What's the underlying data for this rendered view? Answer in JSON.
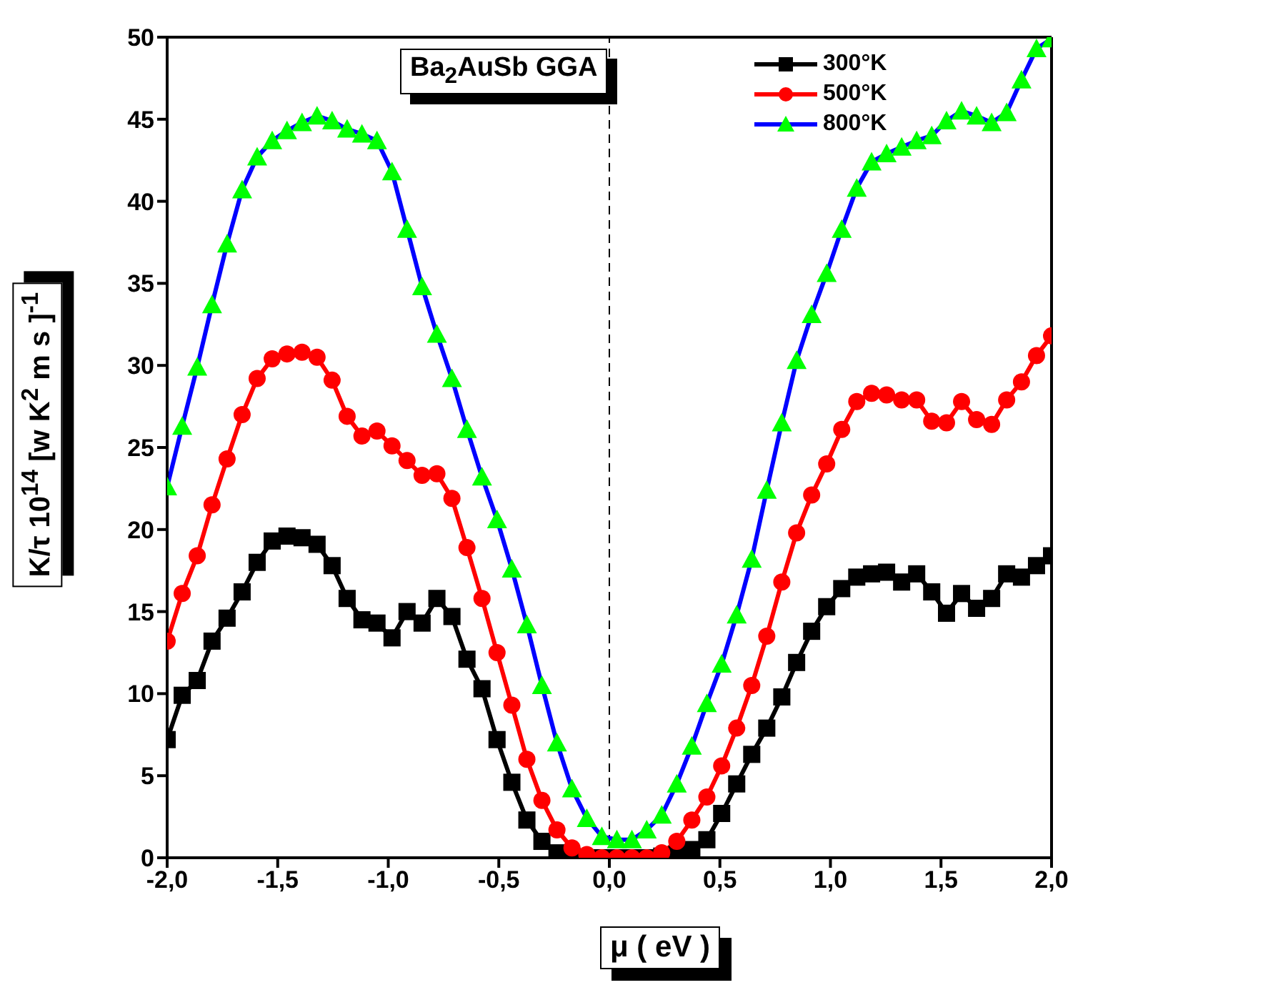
{
  "chart_data": {
    "type": "line",
    "title": "Ba$_{2}$AuSb GGA",
    "xlabel": "μ ( eV )",
    "ylabel": "K/τ 10$^{14}$ [w K$^{2}$ m s ]$^{-1}$",
    "x": [
      -2,
      -1.932,
      -1.864,
      -1.797,
      -1.729,
      -1.661,
      -1.593,
      -1.525,
      -1.458,
      -1.39,
      -1.322,
      -1.254,
      -1.186,
      -1.119,
      -1.051,
      -0.983,
      -0.915,
      -0.847,
      -0.78,
      -0.712,
      -0.644,
      -0.576,
      -0.508,
      -0.441,
      -0.373,
      -0.305,
      -0.237,
      -0.169,
      -0.102,
      -0.034,
      0.034,
      0.102,
      0.169,
      0.237,
      0.305,
      0.373,
      0.441,
      0.508,
      0.576,
      0.644,
      0.712,
      0.78,
      0.847,
      0.915,
      0.983,
      1.051,
      1.119,
      1.186,
      1.254,
      1.322,
      1.39,
      1.458,
      1.525,
      1.593,
      1.661,
      1.729,
      1.797,
      1.864,
      1.932,
      2
    ],
    "series": [
      {
        "name": "300°K",
        "color": "#000000",
        "marker": "square",
        "values": [
          7.2,
          9.9,
          10.8,
          13.2,
          14.6,
          16.2,
          18.0,
          19.3,
          19.6,
          19.5,
          19.1,
          17.8,
          15.8,
          14.5,
          14.3,
          13.4,
          15.0,
          14.3,
          15.8,
          14.7,
          12.1,
          10.3,
          7.2,
          4.6,
          2.3,
          1.0,
          0.3,
          0.1,
          0,
          0,
          0,
          0,
          0,
          0.1,
          0.2,
          0.5,
          1.1,
          2.7,
          4.5,
          6.3,
          7.9,
          9.8,
          11.9,
          13.8,
          15.3,
          16.4,
          17.1,
          17.3,
          17.4,
          16.8,
          17.3,
          16.2,
          14.9,
          16.1,
          15.2,
          15.8,
          17.3,
          17.1,
          17.8,
          18.4
        ]
      },
      {
        "name": "500°K",
        "color": "#ff0000",
        "marker": "circle",
        "values": [
          13.2,
          16.1,
          18.4,
          21.5,
          24.3,
          27.0,
          29.2,
          30.4,
          30.7,
          30.8,
          30.5,
          29.1,
          26.9,
          25.7,
          26.0,
          25.1,
          24.2,
          23.3,
          23.4,
          21.9,
          18.9,
          15.8,
          12.5,
          9.3,
          6.0,
          3.5,
          1.7,
          0.6,
          0.2,
          0.0,
          0.0,
          0.0,
          0.0,
          0.3,
          1.0,
          2.3,
          3.7,
          5.6,
          7.9,
          10.5,
          13.5,
          16.8,
          19.8,
          22.1,
          24.0,
          26.1,
          27.8,
          28.3,
          28.2,
          27.9,
          27.9,
          26.6,
          26.5,
          27.8,
          26.7,
          26.4,
          27.9,
          29.0,
          30.6,
          31.8
        ]
      },
      {
        "name": "800°K",
        "color": "#0000ff",
        "colors": [
          "#00ff00",
          "#00ff00",
          "#00ff00",
          "#00ff00",
          "#00ff00",
          "#00ff00",
          "#00ff00",
          "#00ff00",
          "#00ff00",
          "#00ff00",
          "#00ff00",
          "#00ff00",
          "#00ff00",
          "#00ff00",
          "#00ff00",
          "#00ff00",
          "#00ff00",
          "#00ff00",
          "#00ff00",
          "#00ff00",
          "#00ff00",
          "#00ff00",
          "#00ff00",
          "#00ff00",
          "#00ff00",
          "#00ff00",
          "#00ff00",
          "#00ff00",
          "#00ff00",
          "#00ff00",
          "#00ff00",
          "#00ff00",
          "#00ff00",
          "#00ff00",
          "#00ff00",
          "#00ff00",
          "#00ff00",
          "#00ff00",
          "#00ff00",
          "#00ff00",
          "#00ff00",
          "#00ff00",
          "#00ff00",
          "#00ff00",
          "#00ff00",
          "#00ff00",
          "#00ff00",
          "#00ff00",
          "#00ff00",
          "#00ff00",
          "#00ff00",
          "#00ff00",
          "#00ff00",
          "#00ff00",
          "#00ff00",
          "#00ff00",
          "#00ff00",
          "#00ff00",
          "#00ff00",
          "#00ff00"
        ],
        "marker": "triangle",
        "values": [
          22.6,
          26.3,
          29.9,
          33.7,
          37.4,
          40.7,
          42.7,
          43.7,
          44.3,
          44.8,
          45.2,
          44.9,
          44.4,
          44.1,
          43.7,
          41.8,
          38.3,
          34.8,
          31.9,
          29.2,
          26.1,
          23.2,
          20.6,
          17.6,
          14.2,
          10.5,
          7.0,
          4.2,
          2.4,
          1.3,
          1.1,
          1.1,
          1.7,
          2.6,
          4.5,
          6.8,
          9.4,
          11.8,
          14.8,
          18.2,
          22.4,
          26.5,
          30.3,
          33.1,
          35.6,
          38.3,
          40.8,
          42.4,
          42.9,
          43.3,
          43.7,
          44.0,
          44.9,
          45.5,
          45.2,
          44.8,
          45.4,
          47.4,
          49.3,
          49.9
        ]
      }
    ],
    "xlim": [
      -2,
      2
    ],
    "xticks": [
      {
        "value": -2,
        "label": "-2,0"
      },
      {
        "value": -1.5,
        "label": "-1,5"
      },
      {
        "value": -1,
        "label": "-1,0"
      },
      {
        "value": -0.5,
        "label": "-0,5"
      },
      {
        "value": 0,
        "label": "0,0"
      },
      {
        "value": 0.5,
        "label": "0,5"
      },
      {
        "value": 1,
        "label": "1,0"
      },
      {
        "value": 1.5,
        "label": "1,5"
      },
      {
        "value": 2,
        "label": "2,0"
      }
    ],
    "ylim": [
      0,
      50
    ],
    "yticks": [
      0,
      5,
      10,
      15,
      20,
      25,
      30,
      35,
      40,
      45,
      50
    ],
    "ref_lines": [
      {
        "axis": "x",
        "value": 0,
        "color": "#000000",
        "line_style": "dashed"
      }
    ],
    "grid": false,
    "legend": "top",
    "line_style": "solid"
  }
}
